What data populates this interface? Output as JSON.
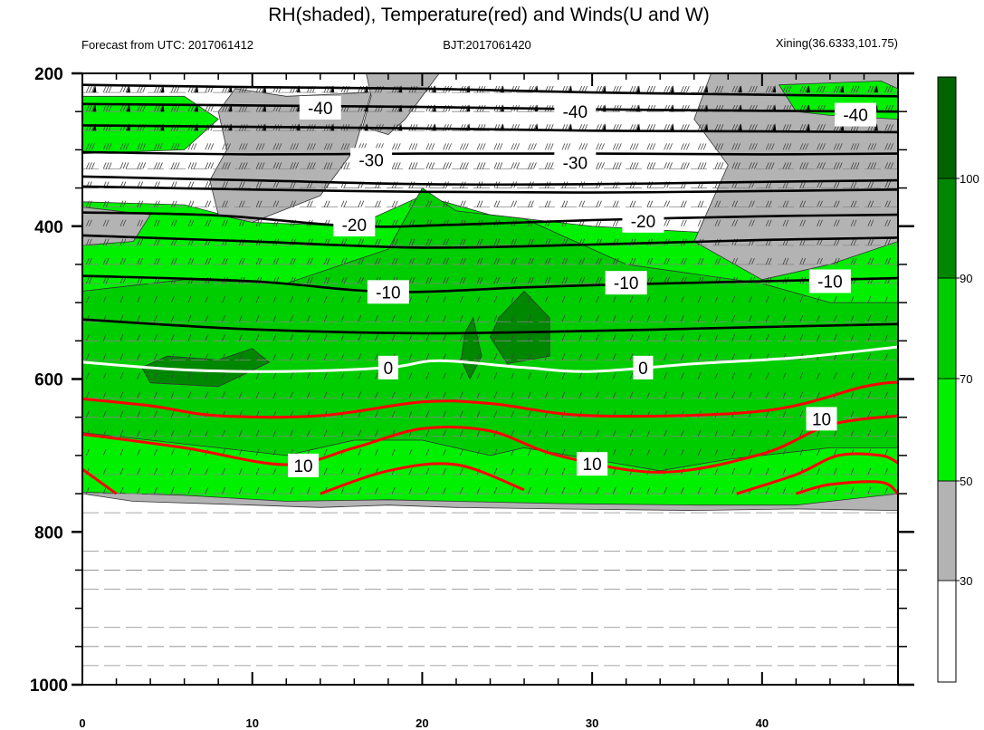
{
  "chart_data": {
    "type": "contour",
    "title": "RH(shaded), Temperature(red) and Winds(U and W)",
    "subtitle_left": "Forecast from UTC: 2017061412",
    "subtitle_center": "BJT:2017061420",
    "subtitle_right": "Xining(36.6333,101.75)",
    "x_ticks": [
      "0",
      "10",
      "20",
      "30",
      "40"
    ],
    "xlim": [
      0,
      48
    ],
    "y_ticks": [
      "200",
      "400",
      "600",
      "800",
      "1000"
    ],
    "ylim": [
      200,
      1000
    ],
    "y_reversed": true,
    "rh_colorbar": {
      "levels": [
        "30",
        "50",
        "70",
        "90",
        "100"
      ],
      "colors": [
        "#ffffff",
        "#b3b3b3",
        "#00f000",
        "#00cd00",
        "#008700",
        "#006400"
      ]
    },
    "temperature_contour_labels": [
      {
        "value": "-40",
        "x": 14,
        "y": 245
      },
      {
        "value": "-40",
        "x": 29,
        "y": 250
      },
      {
        "value": "-40",
        "x": 45.5,
        "y": 254
      },
      {
        "value": "-30",
        "x": 17,
        "y": 313
      },
      {
        "value": "-30",
        "x": 29,
        "y": 317
      },
      {
        "value": "-20",
        "x": 16,
        "y": 398
      },
      {
        "value": "-20",
        "x": 33,
        "y": 393
      },
      {
        "value": "-10",
        "x": 18,
        "y": 486
      },
      {
        "value": "-10",
        "x": 32,
        "y": 474
      },
      {
        "value": "-10",
        "x": 44,
        "y": 472
      },
      {
        "value": "0",
        "x": 18,
        "y": 585
      },
      {
        "value": "0",
        "x": 33,
        "y": 585
      },
      {
        "value": "10",
        "x": 13,
        "y": 713
      },
      {
        "value": "10",
        "x": 30,
        "y": 711
      },
      {
        "value": "10",
        "x": 43.5,
        "y": 652
      }
    ],
    "isotherms": [
      {
        "value": -50,
        "color": "#000000",
        "points": [
          [
            0,
            215
          ],
          [
            10,
            218
          ],
          [
            20,
            220
          ],
          [
            30,
            225
          ],
          [
            40,
            228
          ],
          [
            48,
            230
          ]
        ]
      },
      {
        "value": -45,
        "color": "#000000",
        "points": [
          [
            0,
            240
          ],
          [
            10,
            242
          ],
          [
            20,
            244
          ],
          [
            30,
            247
          ],
          [
            40,
            249
          ],
          [
            48,
            250
          ]
        ]
      },
      {
        "value": -40,
        "color": "#000000",
        "points": [
          [
            0,
            268
          ],
          [
            10,
            270
          ],
          [
            20,
            272
          ],
          [
            30,
            275
          ],
          [
            40,
            276
          ],
          [
            48,
            277
          ]
        ]
      },
      {
        "value": -35,
        "color": "#000000",
        "points": [
          [
            0,
            303
          ],
          [
            10,
            306
          ],
          [
            20,
            305
          ],
          [
            30,
            305
          ],
          [
            40,
            306
          ],
          [
            48,
            305
          ]
        ]
      },
      {
        "value": -30,
        "color": "#000000",
        "points": [
          [
            0,
            335
          ],
          [
            10,
            340
          ],
          [
            20,
            345
          ],
          [
            30,
            345
          ],
          [
            40,
            342
          ],
          [
            48,
            340
          ]
        ]
      },
      {
        "value": -25,
        "color": "#000000",
        "points": [
          [
            0,
            348
          ],
          [
            10,
            352
          ],
          [
            20,
            355
          ],
          [
            30,
            356
          ],
          [
            40,
            354
          ],
          [
            48,
            352
          ]
        ]
      },
      {
        "value": -20,
        "color": "#000000",
        "points": [
          [
            0,
            382
          ],
          [
            8,
            386
          ],
          [
            16,
            400
          ],
          [
            22,
            398
          ],
          [
            30,
            392
          ],
          [
            40,
            387
          ],
          [
            48,
            385
          ]
        ]
      },
      {
        "value": -15,
        "color": "#000000",
        "points": [
          [
            0,
            412
          ],
          [
            10,
            420
          ],
          [
            20,
            428
          ],
          [
            30,
            424
          ],
          [
            40,
            418
          ],
          [
            48,
            415
          ]
        ]
      },
      {
        "value": -10,
        "color": "#000000",
        "points": [
          [
            0,
            465
          ],
          [
            10,
            472
          ],
          [
            18,
            486
          ],
          [
            26,
            480
          ],
          [
            32,
            476
          ],
          [
            40,
            472
          ],
          [
            48,
            468
          ]
        ]
      },
      {
        "value": -5,
        "color": "#000000",
        "points": [
          [
            0,
            522
          ],
          [
            10,
            535
          ],
          [
            20,
            540
          ],
          [
            30,
            537
          ],
          [
            40,
            532
          ],
          [
            48,
            528
          ]
        ]
      },
      {
        "value": 0,
        "color": "#ffffff",
        "points": [
          [
            0,
            578
          ],
          [
            6,
            588
          ],
          [
            12,
            590
          ],
          [
            18,
            585
          ],
          [
            21,
            576
          ],
          [
            26,
            585
          ],
          [
            30,
            590
          ],
          [
            36,
            580
          ],
          [
            42,
            572
          ],
          [
            48,
            558
          ]
        ]
      },
      {
        "value": 5,
        "color": "#ff0000",
        "points": [
          [
            0,
            626
          ],
          [
            4,
            635
          ],
          [
            8,
            648
          ],
          [
            14,
            648
          ],
          [
            20,
            630
          ],
          [
            24,
            632
          ],
          [
            30,
            648
          ],
          [
            40,
            642
          ],
          [
            46,
            610
          ],
          [
            48,
            604
          ]
        ]
      },
      {
        "value": 10,
        "color": "#ff0000",
        "points": [
          [
            0,
            672
          ],
          [
            6,
            690
          ],
          [
            12,
            712
          ],
          [
            16,
            690
          ],
          [
            20,
            665
          ],
          [
            24,
            668
          ],
          [
            28,
            700
          ],
          [
            34,
            722
          ],
          [
            40,
            698
          ],
          [
            44,
            660
          ],
          [
            48,
            648
          ]
        ]
      },
      {
        "value": 15,
        "color": "#ff0000",
        "points": [
          [
            0,
            718
          ],
          [
            2,
            750
          ]
        ]
      },
      {
        "value": 15,
        "color": "#ff0000",
        "points": [
          [
            14,
            750
          ],
          [
            18,
            720
          ],
          [
            22,
            712
          ],
          [
            26,
            745
          ]
        ]
      },
      {
        "value": 15,
        "color": "#ff0000",
        "points": [
          [
            38.5,
            750
          ],
          [
            42,
            725
          ],
          [
            44.5,
            700
          ],
          [
            47,
            700
          ],
          [
            48,
            710
          ]
        ]
      },
      {
        "value": 20,
        "color": "#ff0000",
        "points": [
          [
            42,
            750
          ],
          [
            44,
            738
          ],
          [
            47,
            735
          ],
          [
            48,
            750
          ]
        ]
      }
    ],
    "rh_regions": [
      {
        "rh_class": "gray",
        "points": [
          [
            0,
            750
          ],
          [
            3,
            760
          ],
          [
            10,
            765
          ],
          [
            14,
            768
          ],
          [
            18,
            765
          ],
          [
            22,
            768
          ],
          [
            28,
            770
          ],
          [
            36,
            772
          ],
          [
            42,
            770
          ],
          [
            48,
            772
          ],
          [
            48,
            720
          ],
          [
            44,
            690
          ],
          [
            40,
            720
          ],
          [
            36,
            735
          ],
          [
            30,
            730
          ],
          [
            24,
            700
          ],
          [
            20,
            690
          ],
          [
            14,
            705
          ],
          [
            10,
            720
          ],
          [
            6,
            715
          ],
          [
            0,
            725
          ]
        ]
      },
      {
        "rh_class": "green50",
        "points": [
          [
            0,
            368
          ],
          [
            6,
            372
          ],
          [
            10,
            395
          ],
          [
            16,
            400
          ],
          [
            20,
            360
          ],
          [
            24,
            385
          ],
          [
            30,
            400
          ],
          [
            38,
            410
          ],
          [
            40,
            420
          ],
          [
            48,
            415
          ],
          [
            48,
            750
          ],
          [
            42,
            765
          ],
          [
            36,
            765
          ],
          [
            28,
            763
          ],
          [
            22,
            760
          ],
          [
            18,
            758
          ],
          [
            12,
            760
          ],
          [
            6,
            752
          ],
          [
            0,
            748
          ]
        ]
      },
      {
        "rh_class": "green70",
        "points": [
          [
            0,
            485
          ],
          [
            6,
            470
          ],
          [
            12,
            475
          ],
          [
            18,
            430
          ],
          [
            20,
            350
          ],
          [
            22,
            380
          ],
          [
            26,
            390
          ],
          [
            32,
            450
          ],
          [
            40,
            475
          ],
          [
            44,
            500
          ],
          [
            48,
            500
          ],
          [
            48,
            690
          ],
          [
            44,
            690
          ],
          [
            38,
            705
          ],
          [
            34,
            720
          ],
          [
            30,
            705
          ],
          [
            26,
            690
          ],
          [
            24,
            700
          ],
          [
            20,
            680
          ],
          [
            16,
            680
          ],
          [
            12,
            700
          ],
          [
            8,
            690
          ],
          [
            4,
            680
          ],
          [
            0,
            670
          ]
        ]
      },
      {
        "rh_class": "green90",
        "points": [
          [
            3.5,
            585
          ],
          [
            5,
            570
          ],
          [
            8,
            575
          ],
          [
            10,
            560
          ],
          [
            11,
            578
          ],
          [
            8,
            610
          ],
          [
            4,
            605
          ]
        ]
      },
      {
        "rh_class": "green90",
        "points": [
          [
            24.5,
            520
          ],
          [
            26,
            485
          ],
          [
            27.5,
            520
          ],
          [
            27.5,
            570
          ],
          [
            25,
            580
          ],
          [
            24,
            545
          ]
        ]
      },
      {
        "rh_class": "green90",
        "points": [
          [
            22.5,
            540
          ],
          [
            23,
            520
          ],
          [
            23.5,
            570
          ],
          [
            22.8,
            600
          ],
          [
            22.3,
            575
          ]
        ]
      },
      {
        "rh_class": "gray",
        "points": [
          [
            7.5,
            340
          ],
          [
            8.5,
            300
          ],
          [
            8,
            250
          ],
          [
            9,
            220
          ],
          [
            12,
            230
          ],
          [
            17,
            225
          ],
          [
            16,
            300
          ],
          [
            14,
            360
          ],
          [
            10,
            395
          ],
          [
            8,
            385
          ]
        ]
      },
      {
        "rh_class": "gray",
        "points": [
          [
            16.5,
            270
          ],
          [
            17,
            230
          ],
          [
            16.7,
            200
          ],
          [
            21,
            200
          ],
          [
            20,
            230
          ],
          [
            19,
            260
          ],
          [
            18,
            280
          ]
        ]
      },
      {
        "rh_class": "gray",
        "points": [
          [
            37,
            200
          ],
          [
            48,
            200
          ],
          [
            48,
            420
          ],
          [
            44,
            450
          ],
          [
            40,
            470
          ],
          [
            36,
            420
          ],
          [
            38,
            320
          ],
          [
            36,
            260
          ]
        ]
      },
      {
        "rh_class": "green50",
        "points": [
          [
            41,
            215
          ],
          [
            47,
            210
          ],
          [
            48,
            220
          ],
          [
            48,
            260
          ],
          [
            44,
            255
          ],
          [
            42,
            250
          ]
        ]
      },
      {
        "rh_class": "green50",
        "points": [
          [
            0,
            230
          ],
          [
            6,
            230
          ],
          [
            8,
            260
          ],
          [
            6,
            300
          ],
          [
            0,
            305
          ]
        ]
      },
      {
        "rh_class": "gray",
        "points": [
          [
            0,
            375
          ],
          [
            4,
            385
          ],
          [
            3,
            420
          ],
          [
            0,
            425
          ]
        ]
      }
    ]
  }
}
